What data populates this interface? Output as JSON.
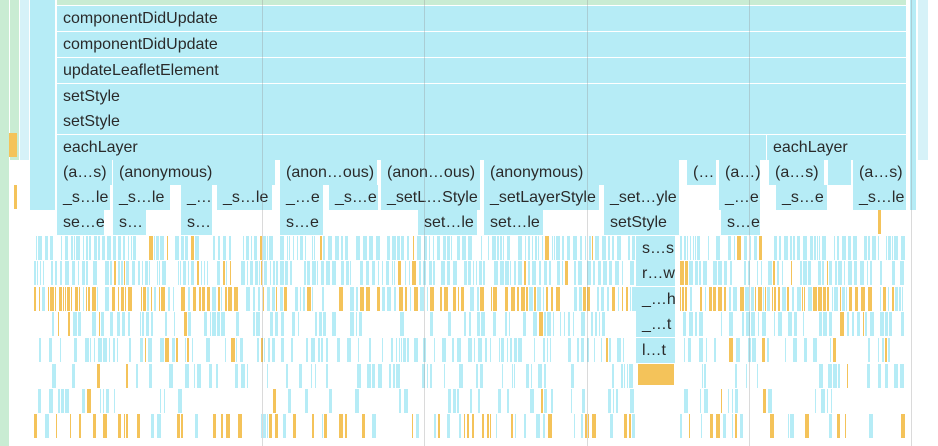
{
  "flame_chart": {
    "rows": [
      {
        "label": "componentDidUpdate"
      },
      {
        "label": "componentDidUpdate"
      },
      {
        "label": "updateLeafletElement"
      },
      {
        "label": "setStyle"
      },
      {
        "label": "setStyle"
      },
      {
        "label": "eachLayer",
        "right_label": "eachLayer"
      }
    ],
    "row7": [
      "(a…s)",
      "(anonymous)",
      "(anon…ous)",
      "(anon…ous)",
      "(anonymous)",
      "(…",
      "(a…)",
      "(a…s)",
      "(a…s)"
    ],
    "row8": [
      "_s…le",
      "_s…le",
      "_…",
      "_s…le",
      "_…e",
      "_s…e",
      "_setL…Style",
      "_setLayerStyle",
      "_set…yle",
      "_…e",
      "_s…e",
      "_s…le"
    ],
    "row9": [
      "se…e",
      "s…",
      "s…",
      "s…e",
      "set…le",
      "set…le",
      "setStyle",
      "s…e"
    ],
    "deep_stack": [
      "s…s",
      "r…w",
      "_…h",
      "_…t",
      "l…t"
    ],
    "colors": {
      "script": "#b6ecf6",
      "yellow": "#f4c35a",
      "green": "#c9ecd3"
    }
  }
}
